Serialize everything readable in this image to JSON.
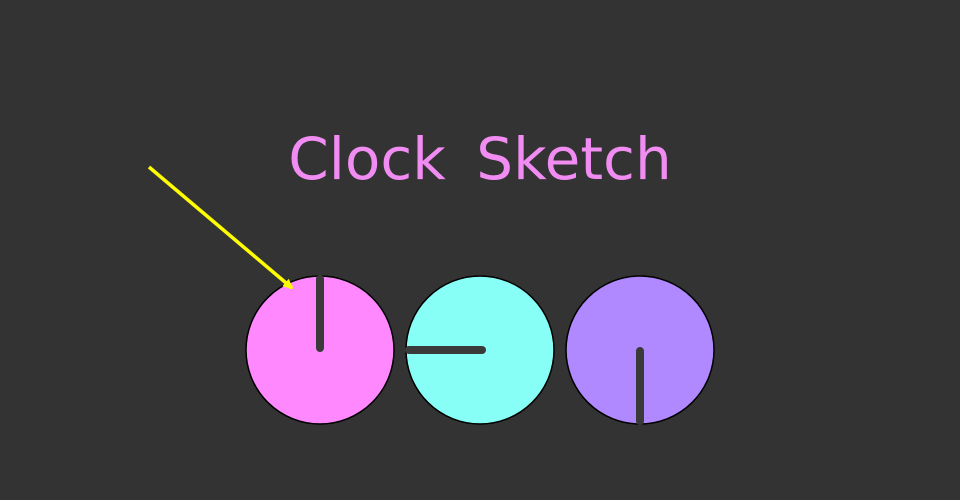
{
  "title": "Clock Sketch",
  "colors": {
    "background": "#333333",
    "title": "#f08cf2",
    "arrow": "#ffff00",
    "hand": "#3a3a3a",
    "outline": "#000000"
  },
  "clocks": [
    {
      "name": "clock-pink",
      "color": "#ff88ff",
      "hand_direction": "up"
    },
    {
      "name": "clock-cyan",
      "color": "#88fff6",
      "hand_direction": "left"
    },
    {
      "name": "clock-purple",
      "color": "#b088ff",
      "hand_direction": "down"
    }
  ],
  "pointer": {
    "icon": "arrow-icon",
    "target": "clock-pink"
  }
}
